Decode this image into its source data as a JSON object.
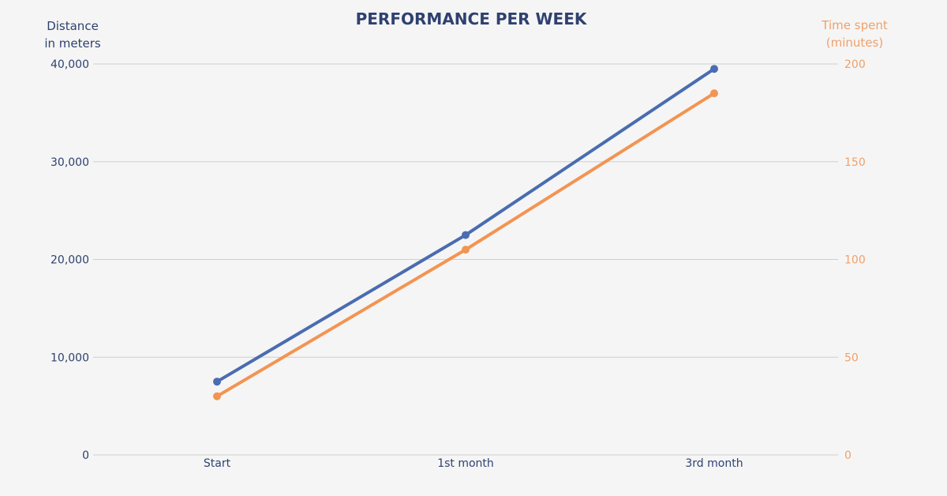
{
  "chart_data": {
    "type": "line",
    "title": "PERFORMANCE PER WEEK",
    "categories": [
      "Start",
      "1st month",
      "3rd month"
    ],
    "y_left": {
      "label_lines": [
        "Distance",
        "in meters"
      ],
      "ticks": [
        0,
        10000,
        20000,
        30000,
        40000
      ],
      "tick_labels": [
        "0",
        "10,000",
        "20,000",
        "30,000",
        "40,000"
      ],
      "ylim": [
        0,
        40000
      ],
      "color": "#2f4170"
    },
    "y_right": {
      "label_lines": [
        "Time spent",
        "(minutes)"
      ],
      "ticks": [
        0,
        50,
        100,
        150,
        200
      ],
      "tick_labels": [
        "0",
        "50",
        "100",
        "150",
        "200"
      ],
      "ylim": [
        0,
        200
      ],
      "color": "#f0a06a"
    },
    "series": [
      {
        "axis": "left",
        "color": "#4a6cb0",
        "values": [
          7500,
          22500,
          39500
        ]
      },
      {
        "axis": "right",
        "color": "#f39452",
        "values": [
          30,
          105,
          185
        ]
      }
    ],
    "grid": true,
    "title_color": "#2f4170",
    "tick_color": "#2f4170",
    "grid_color": "#cfcfcf"
  }
}
